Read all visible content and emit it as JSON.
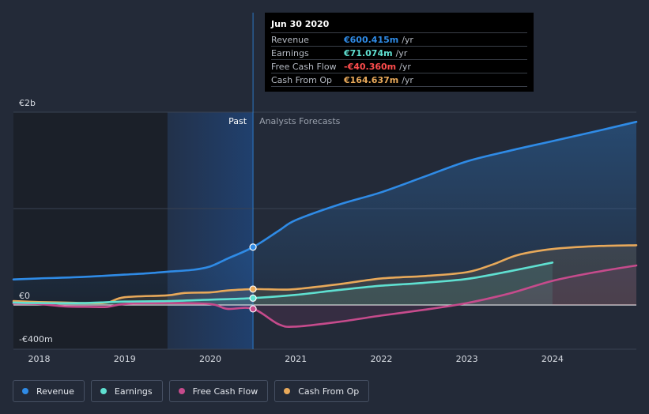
{
  "chart_data": {
    "type": "line",
    "title": "",
    "xlabel": "",
    "ylabel": "",
    "ylim": [
      -400,
      2000
    ],
    "y_tick_labels": [
      {
        "value": 2000,
        "label": "€2b"
      },
      {
        "value": 0,
        "label": "€0"
      },
      {
        "value": -400,
        "label": "-€400m"
      }
    ],
    "x_ticks": [
      2018,
      2019,
      2020,
      2021,
      2022,
      2023,
      2024
    ],
    "x_range": [
      2017.7,
      2024.98
    ],
    "past_label": "Past",
    "forecast_label": "Analysts Forecasts",
    "divider_x": 2020.5,
    "shaded_start": 2019.5,
    "series": [
      {
        "name": "Revenue",
        "color": "#2f8be6",
        "marker_value": 600.415,
        "x": [
          2017.7,
          2018.0,
          2018.5,
          2019.0,
          2019.3,
          2019.5,
          2019.8,
          2020.0,
          2020.2,
          2020.5,
          2020.8,
          2021.0,
          2021.5,
          2022.0,
          2022.5,
          2023.0,
          2023.5,
          2024.0,
          2024.5,
          2024.98
        ],
        "values": [
          265,
          275,
          290,
          315,
          330,
          345,
          365,
          400,
          480,
          600,
          770,
          880,
          1040,
          1170,
          1330,
          1490,
          1600,
          1700,
          1800,
          1900
        ]
      },
      {
        "name": "Earnings",
        "color": "#5fe0d1",
        "marker_value": 71.074,
        "x": [
          2017.7,
          2018.0,
          2018.5,
          2019.0,
          2019.5,
          2020.0,
          2020.5,
          2021.0,
          2021.5,
          2022.0,
          2022.5,
          2023.0,
          2023.5,
          2024.0
        ],
        "values": [
          25,
          20,
          20,
          35,
          40,
          55,
          71,
          105,
          155,
          200,
          230,
          270,
          350,
          440
        ]
      },
      {
        "name": "Free Cash Flow",
        "color": "#c64b8c",
        "marker_value": -40.36,
        "x": [
          2017.7,
          2018.0,
          2018.3,
          2018.6,
          2018.8,
          2019.0,
          2019.5,
          2020.0,
          2020.2,
          2020.5,
          2020.8,
          2021.0,
          2021.5,
          2022.0,
          2022.5,
          2023.0,
          2023.5,
          2024.0,
          2024.5,
          2024.98
        ],
        "values": [
          15,
          10,
          -15,
          -20,
          -20,
          10,
          20,
          10,
          -40,
          -40,
          -200,
          -225,
          -175,
          -110,
          -50,
          20,
          120,
          250,
          340,
          410
        ]
      },
      {
        "name": "Cash From Op",
        "color": "#e8a95a",
        "marker_value": 164.637,
        "x": [
          2017.7,
          2018.0,
          2018.3,
          2018.6,
          2018.8,
          2019.0,
          2019.5,
          2019.7,
          2020.0,
          2020.2,
          2020.5,
          2020.8,
          2021.0,
          2021.5,
          2022.0,
          2022.5,
          2023.0,
          2023.3,
          2023.6,
          2024.0,
          2024.5,
          2024.98
        ],
        "values": [
          40,
          30,
          25,
          20,
          25,
          80,
          100,
          125,
          130,
          150,
          165,
          160,
          165,
          215,
          275,
          300,
          340,
          420,
          520,
          580,
          610,
          620
        ]
      }
    ]
  },
  "tooltip": {
    "date": "Jun 30 2020",
    "rows": [
      {
        "label": "Revenue",
        "value": "€600.415m",
        "unit": "/yr",
        "color": "#2f8be6"
      },
      {
        "label": "Earnings",
        "value": "€71.074m",
        "unit": "/yr",
        "color": "#5fe0d1"
      },
      {
        "label": "Free Cash Flow",
        "value": "-€40.360m",
        "unit": "/yr",
        "color": "#ff4d4d"
      },
      {
        "label": "Cash From Op",
        "value": "€164.637m",
        "unit": "/yr",
        "color": "#e8a95a"
      }
    ]
  },
  "legend": [
    {
      "label": "Revenue",
      "color": "#2f8be6"
    },
    {
      "label": "Earnings",
      "color": "#5fe0d1"
    },
    {
      "label": "Free Cash Flow",
      "color": "#c64b8c"
    },
    {
      "label": "Cash From Op",
      "color": "#e8a95a"
    }
  ]
}
